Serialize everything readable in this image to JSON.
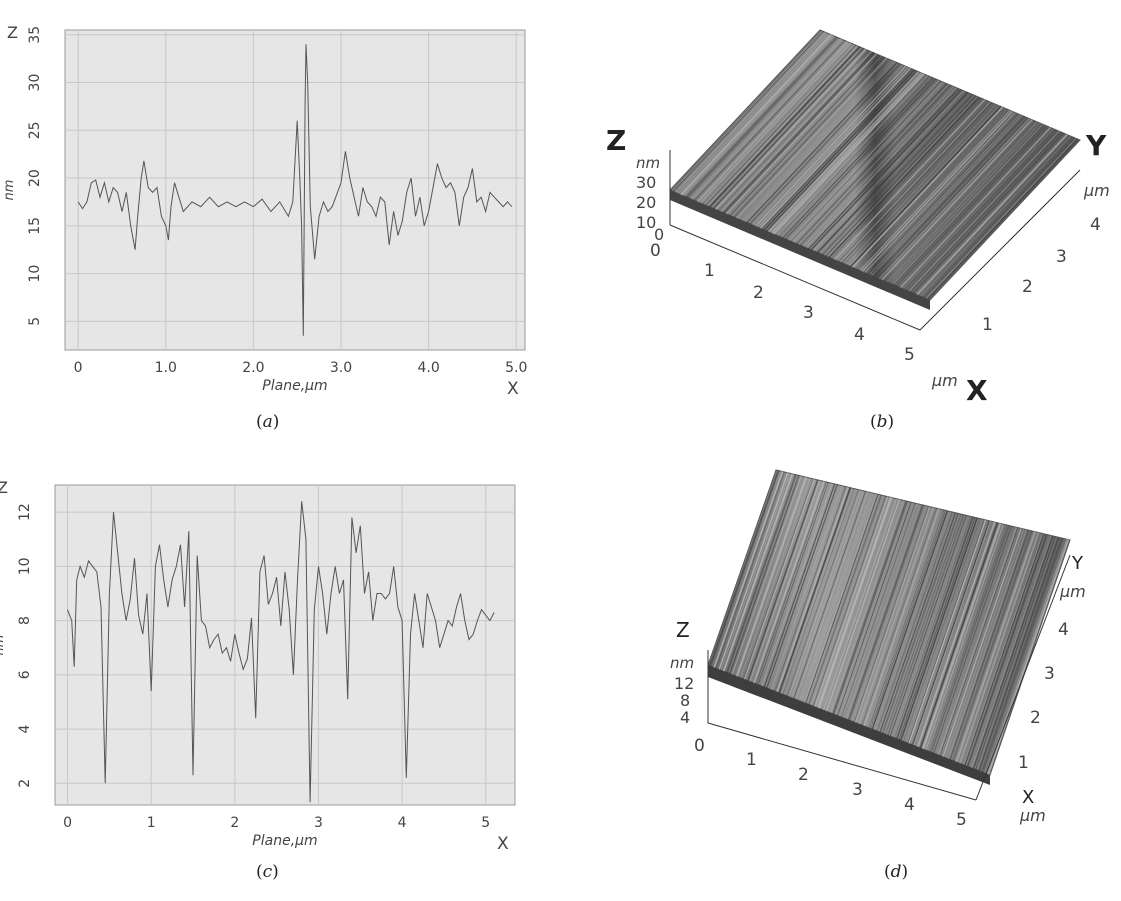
{
  "captions": {
    "a": {
      "open": "(",
      "letter": "a",
      "close": ")"
    },
    "b": {
      "open": "(",
      "letter": "b",
      "close": ")"
    },
    "c": {
      "open": "(",
      "letter": "c",
      "close": ")"
    },
    "d": {
      "open": "(",
      "letter": "d",
      "close": ")"
    }
  },
  "surfaces": [
    {
      "id": "b",
      "type": "surface3d",
      "z_axis": {
        "name": "Z",
        "unit": "nm",
        "ticks": [
          "30",
          "20",
          "10",
          "0"
        ]
      },
      "x_axis": {
        "name": "X",
        "unit": "µm",
        "ticks": [
          "0",
          "1",
          "2",
          "3",
          "4",
          "5"
        ]
      },
      "y_axis": {
        "name": "Y",
        "unit": "µm",
        "ticks": [
          "1",
          "2",
          "3",
          "4"
        ]
      },
      "colors": {
        "surface": "#7a7a7a",
        "dark": "#3a3a3a",
        "light": "#b0b0b0"
      }
    },
    {
      "id": "d",
      "type": "surface3d",
      "z_axis": {
        "name": "Z",
        "unit": "nm",
        "ticks": [
          "12",
          "8",
          "4"
        ]
      },
      "x_axis": {
        "name": "X",
        "unit": "µm",
        "ticks": [
          "0",
          "1",
          "2",
          "3",
          "4",
          "5"
        ]
      },
      "y_axis": {
        "name": "Y",
        "unit": "µm",
        "ticks": [
          "1",
          "2",
          "3",
          "4"
        ]
      },
      "colors": {
        "surface": "#8a8a8a",
        "dark": "#3a3a3a",
        "light": "#c0c0c0"
      }
    }
  ],
  "chart_data": [
    {
      "id": "a",
      "type": "line",
      "xlabel": "Plane,µm",
      "ylabel": "nm",
      "x_axis_name": "X",
      "y_axis_name": "Z",
      "xlim": [
        -0.15,
        5.1
      ],
      "ylim": [
        2,
        35.5
      ],
      "x_ticks": [
        0,
        1.0,
        2.0,
        3.0,
        4.0,
        5.0
      ],
      "x_tick_labels": [
        "0",
        "1.0",
        "2.0",
        "3.0",
        "4.0",
        "5.0"
      ],
      "y_ticks": [
        5,
        10,
        15,
        20,
        25,
        30,
        35
      ],
      "y_tick_labels": [
        "5",
        "10",
        "15",
        "20",
        "25",
        "30",
        "35"
      ],
      "grid": true,
      "colors": {
        "background": "#e6e6e6",
        "grid": "#c8c8c8",
        "line": "#555555"
      },
      "x": [
        0.0,
        0.05,
        0.1,
        0.15,
        0.2,
        0.25,
        0.3,
        0.35,
        0.4,
        0.45,
        0.5,
        0.55,
        0.6,
        0.65,
        0.68,
        0.72,
        0.75,
        0.8,
        0.85,
        0.9,
        0.95,
        1.0,
        1.03,
        1.06,
        1.1,
        1.15,
        1.2,
        1.3,
        1.4,
        1.5,
        1.6,
        1.7,
        1.8,
        1.9,
        2.0,
        2.1,
        2.2,
        2.3,
        2.4,
        2.45,
        2.5,
        2.53,
        2.55,
        2.57,
        2.59,
        2.6,
        2.62,
        2.65,
        2.7,
        2.75,
        2.8,
        2.85,
        2.9,
        3.0,
        3.05,
        3.1,
        3.15,
        3.2,
        3.25,
        3.3,
        3.35,
        3.4,
        3.45,
        3.5,
        3.55,
        3.6,
        3.65,
        3.7,
        3.75,
        3.8,
        3.85,
        3.9,
        3.95,
        4.0,
        4.05,
        4.1,
        4.15,
        4.2,
        4.25,
        4.3,
        4.35,
        4.4,
        4.45,
        4.5,
        4.55,
        4.6,
        4.65,
        4.7,
        4.75,
        4.8,
        4.85,
        4.9,
        4.95
      ],
      "y": [
        17.5,
        16.8,
        17.5,
        19.5,
        19.8,
        18.0,
        19.5,
        17.5,
        19.0,
        18.5,
        16.5,
        18.5,
        15.0,
        12.5,
        16.0,
        20.0,
        21.8,
        19.0,
        18.5,
        19.0,
        16.0,
        15.0,
        13.5,
        17.0,
        19.5,
        18.0,
        16.5,
        17.5,
        17.0,
        18.0,
        17.0,
        17.5,
        17.0,
        17.5,
        17.0,
        17.8,
        16.5,
        17.5,
        16.0,
        17.5,
        26.0,
        20.0,
        15.0,
        3.5,
        28.0,
        34.0,
        30.0,
        17.0,
        11.5,
        16.0,
        17.5,
        16.5,
        17.0,
        19.5,
        22.8,
        20.0,
        18.0,
        16.0,
        19.0,
        17.5,
        17.0,
        16.0,
        18.0,
        17.5,
        13.0,
        16.5,
        14.0,
        15.5,
        18.5,
        20.0,
        16.0,
        18.0,
        15.0,
        16.5,
        19.0,
        21.5,
        20.0,
        19.0,
        19.5,
        18.5,
        15.0,
        18.0,
        19.0,
        21.0,
        17.5,
        18.0,
        16.5,
        18.5,
        18.0,
        17.5,
        17.0,
        17.5,
        17.0
      ]
    },
    {
      "id": "c",
      "type": "line",
      "xlabel": "Plane,µm",
      "ylabel": "nm",
      "x_axis_name": "X",
      "y_axis_name": "Z",
      "xlim": [
        -0.15,
        5.35
      ],
      "ylim": [
        1.2,
        13
      ],
      "x_ticks": [
        0,
        1,
        2,
        3,
        4,
        5
      ],
      "x_tick_labels": [
        "0",
        "1",
        "2",
        "3",
        "4",
        "5"
      ],
      "y_ticks": [
        2,
        4,
        6,
        8,
        10,
        12
      ],
      "y_tick_labels": [
        "2",
        "4",
        "6",
        "8",
        "10",
        "12"
      ],
      "grid": true,
      "colors": {
        "background": "#e6e6e6",
        "grid": "#c8c8c8",
        "line": "#555555"
      },
      "x": [
        0.0,
        0.05,
        0.08,
        0.11,
        0.15,
        0.2,
        0.25,
        0.3,
        0.35,
        0.4,
        0.45,
        0.5,
        0.55,
        0.6,
        0.65,
        0.7,
        0.75,
        0.8,
        0.85,
        0.9,
        0.95,
        1.0,
        1.05,
        1.1,
        1.15,
        1.2,
        1.25,
        1.3,
        1.35,
        1.4,
        1.45,
        1.5,
        1.55,
        1.6,
        1.65,
        1.7,
        1.75,
        1.8,
        1.85,
        1.9,
        1.95,
        2.0,
        2.05,
        2.1,
        2.15,
        2.2,
        2.25,
        2.3,
        2.35,
        2.4,
        2.45,
        2.5,
        2.55,
        2.6,
        2.65,
        2.7,
        2.75,
        2.8,
        2.85,
        2.9,
        2.95,
        3.0,
        3.05,
        3.1,
        3.15,
        3.2,
        3.25,
        3.3,
        3.35,
        3.4,
        3.45,
        3.5,
        3.55,
        3.6,
        3.65,
        3.7,
        3.75,
        3.8,
        3.85,
        3.9,
        3.95,
        4.0,
        4.05,
        4.1,
        4.15,
        4.2,
        4.25,
        4.3,
        4.35,
        4.4,
        4.45,
        4.5,
        4.55,
        4.6,
        4.65,
        4.7,
        4.75,
        4.8,
        4.85,
        4.9,
        4.95,
        5.0,
        5.05,
        5.1
      ],
      "y": [
        8.4,
        8.0,
        6.3,
        9.5,
        10.0,
        9.6,
        10.2,
        10.0,
        9.8,
        8.5,
        2.0,
        9.0,
        12.0,
        10.5,
        9.0,
        8.0,
        8.8,
        10.3,
        8.2,
        7.5,
        9.0,
        5.4,
        10.0,
        10.8,
        9.5,
        8.5,
        9.5,
        10.0,
        10.8,
        8.5,
        11.3,
        2.3,
        10.4,
        8.0,
        7.8,
        7.0,
        7.3,
        7.5,
        6.8,
        7.0,
        6.5,
        7.5,
        6.8,
        6.2,
        6.6,
        8.1,
        4.4,
        9.8,
        10.4,
        8.6,
        9.0,
        9.6,
        7.8,
        9.8,
        8.4,
        6.0,
        9.5,
        12.4,
        11.0,
        1.3,
        8.4,
        10.0,
        9.0,
        7.5,
        9.0,
        10.0,
        9.0,
        9.5,
        5.1,
        11.8,
        10.5,
        11.5,
        9.0,
        9.8,
        8.0,
        9.0,
        9.0,
        8.8,
        9.0,
        10.0,
        8.5,
        8.0,
        2.2,
        7.5,
        9.0,
        8.0,
        7.0,
        9.0,
        8.5,
        8.0,
        7.0,
        7.5,
        8.0,
        7.8,
        8.5,
        9.0,
        8.0,
        7.3,
        7.5,
        8.0,
        8.4,
        8.2,
        8.0,
        8.3
      ]
    }
  ]
}
